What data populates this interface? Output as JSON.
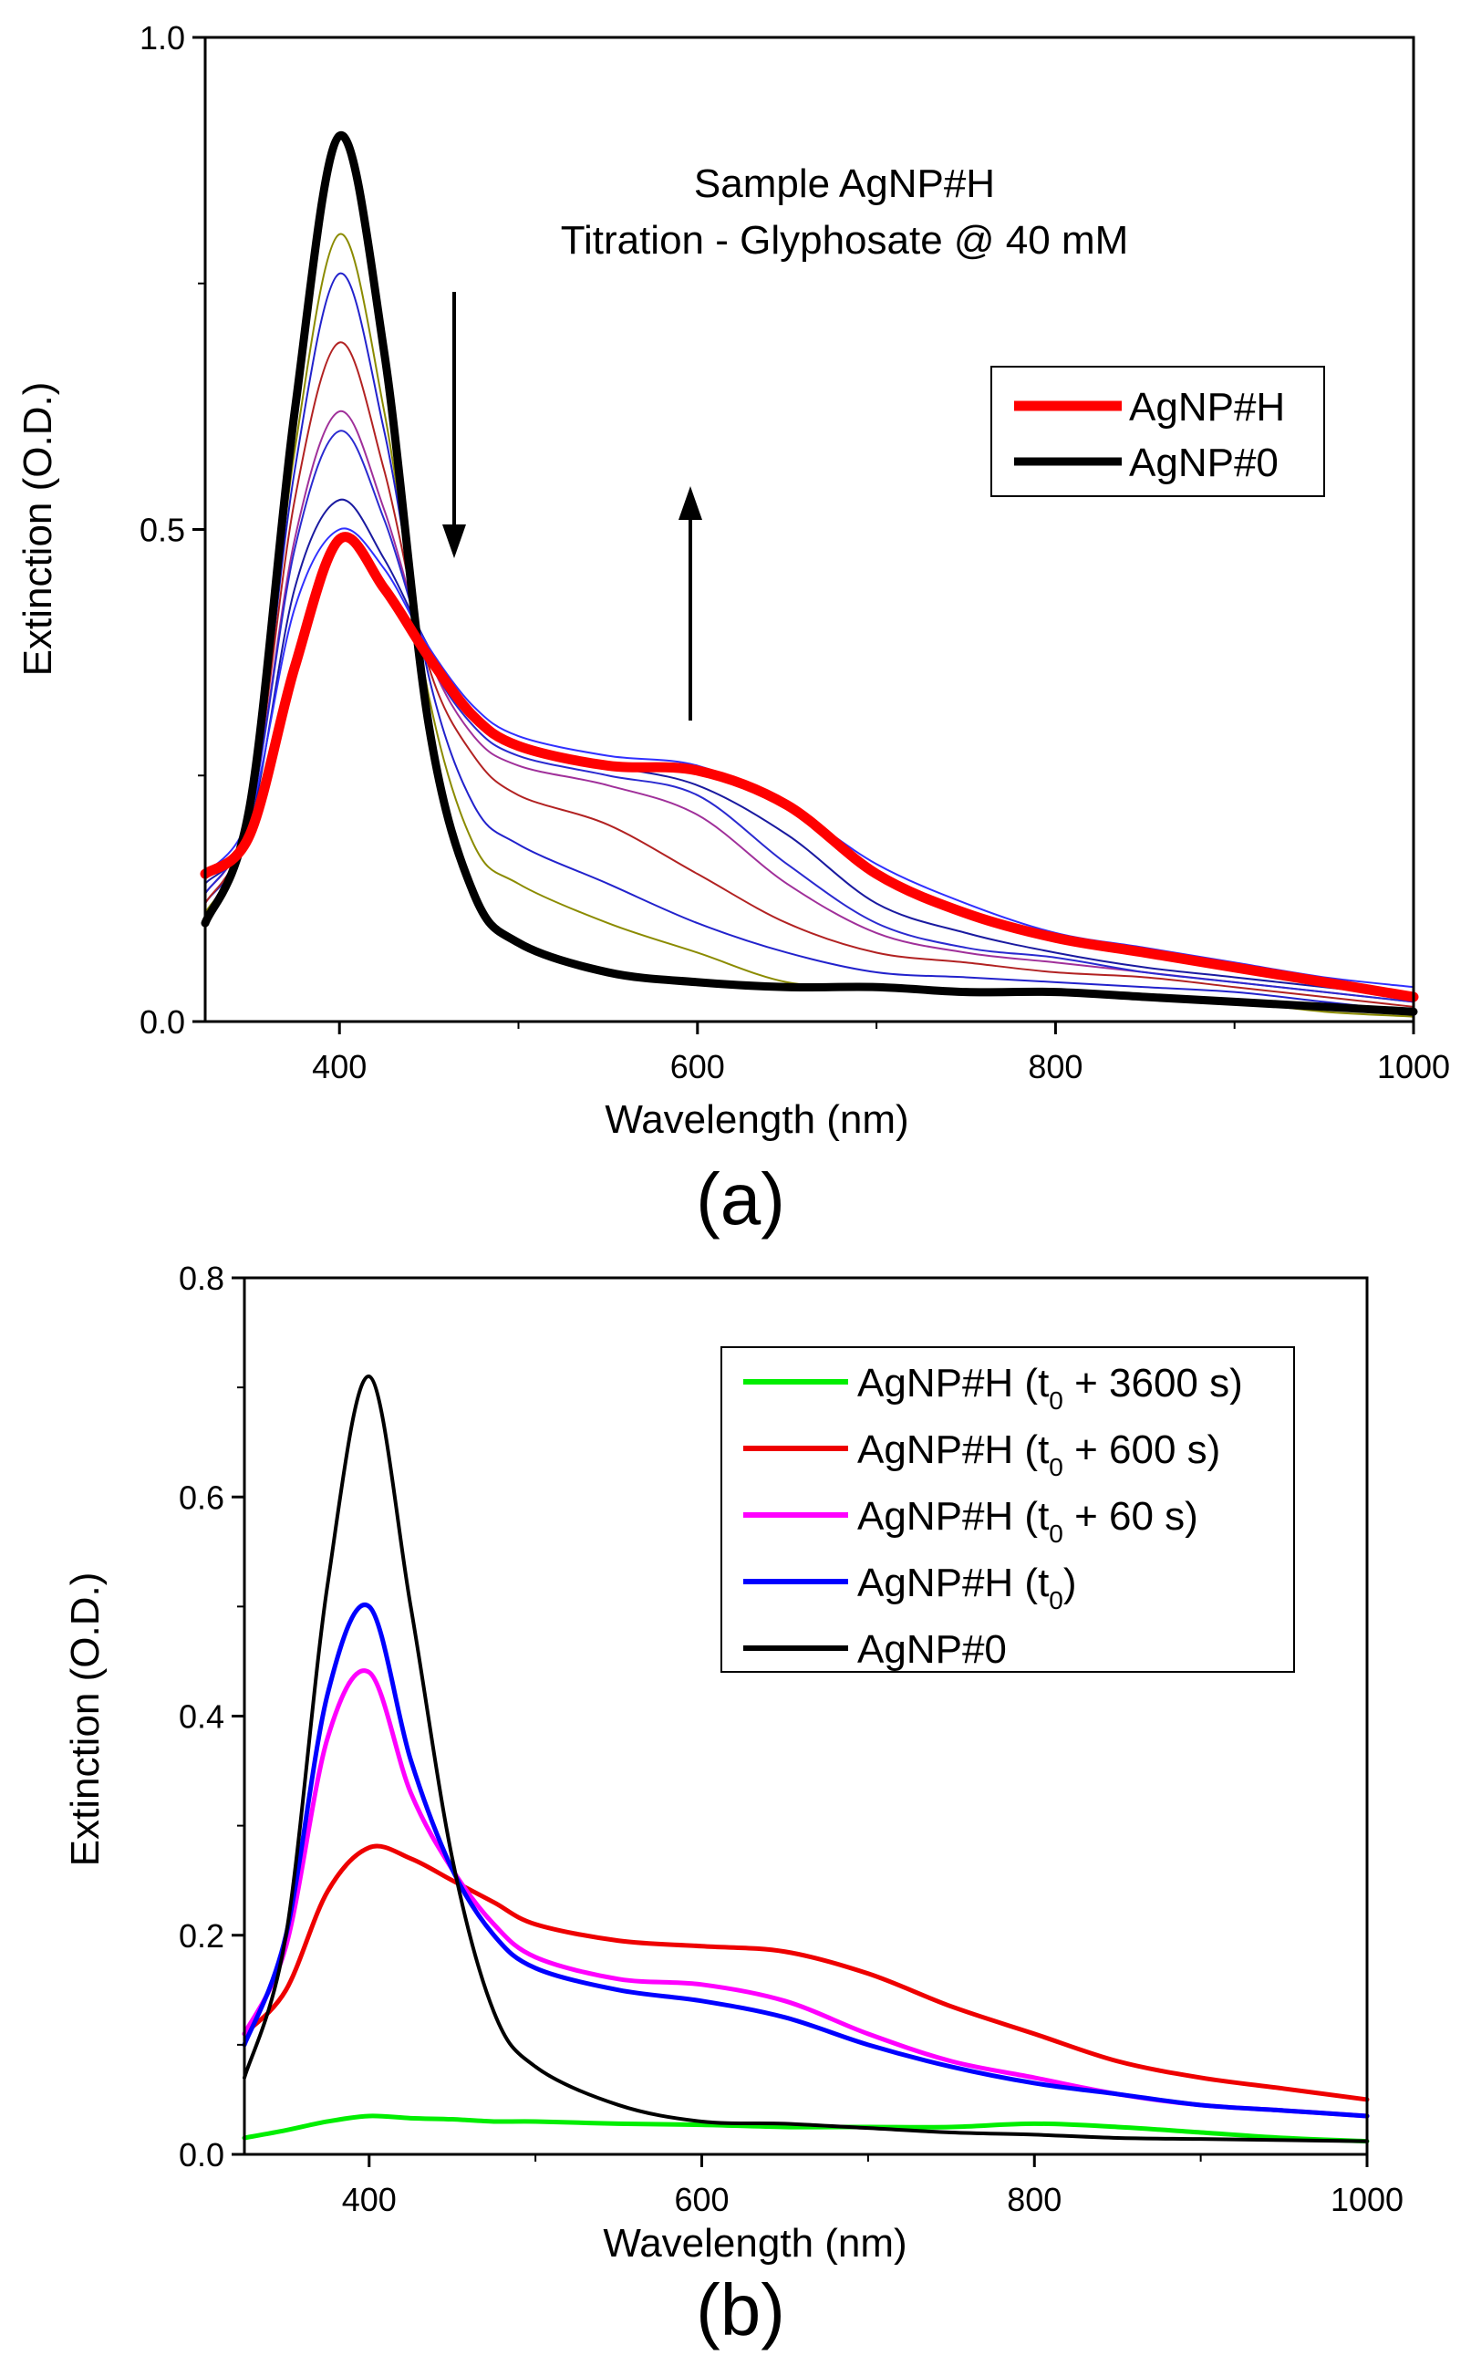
{
  "chart_data": [
    {
      "type": "line",
      "panel_label": "(a)",
      "annotation": [
        "Sample AgNP#H",
        "Titration - Glyphosate @ 40 mM"
      ],
      "xlabel": "Wavelength (nm)",
      "ylabel": "Extinction (O.D.)",
      "xlim": [
        325,
        1000
      ],
      "ylim": [
        0,
        1.0
      ],
      "xticks": [
        400,
        600,
        800,
        1000
      ],
      "xtick_labels": [
        "400",
        "600",
        "800",
        "1000"
      ],
      "yticks": [
        0,
        0.5,
        1.0
      ],
      "ytick_labels": [
        "0.0",
        "0.5",
        "1.0"
      ],
      "grid": false,
      "legend_placement": "top-right",
      "x": [
        325,
        350,
        375,
        400,
        425,
        450,
        475,
        500,
        550,
        600,
        650,
        700,
        750,
        800,
        850,
        900,
        950,
        1000
      ],
      "series": [
        {
          "name": "",
          "color": "#8b8b00",
          "width": 2,
          "legend": false,
          "values": [
            0.11,
            0.21,
            0.58,
            0.8,
            0.62,
            0.33,
            0.18,
            0.14,
            0.1,
            0.07,
            0.04,
            0.035,
            0.03,
            0.03,
            0.025,
            0.02,
            0.01,
            0.005
          ]
        },
        {
          "name": "",
          "color": "#2222cc",
          "width": 2,
          "legend": false,
          "values": [
            0.12,
            0.21,
            0.56,
            0.76,
            0.6,
            0.35,
            0.22,
            0.18,
            0.14,
            0.1,
            0.07,
            0.05,
            0.045,
            0.04,
            0.035,
            0.03,
            0.02,
            0.01
          ]
        },
        {
          "name": "",
          "color": "#b22222",
          "width": 2,
          "legend": false,
          "values": [
            0.12,
            0.21,
            0.53,
            0.69,
            0.56,
            0.36,
            0.27,
            0.23,
            0.2,
            0.15,
            0.1,
            0.07,
            0.06,
            0.05,
            0.045,
            0.035,
            0.025,
            0.015
          ]
        },
        {
          "name": "",
          "color": "#a0309a",
          "width": 2,
          "legend": false,
          "values": [
            0.13,
            0.21,
            0.49,
            0.62,
            0.52,
            0.37,
            0.29,
            0.26,
            0.24,
            0.21,
            0.14,
            0.09,
            0.07,
            0.06,
            0.05,
            0.04,
            0.03,
            0.02
          ]
        },
        {
          "name": "",
          "color": "#2a2ad0",
          "width": 2,
          "legend": false,
          "values": [
            0.13,
            0.21,
            0.48,
            0.6,
            0.51,
            0.37,
            0.3,
            0.27,
            0.25,
            0.23,
            0.16,
            0.1,
            0.075,
            0.065,
            0.05,
            0.04,
            0.03,
            0.02
          ]
        },
        {
          "name": "",
          "color": "#1a1aa0",
          "width": 2,
          "legend": false,
          "values": [
            0.14,
            0.2,
            0.44,
            0.53,
            0.47,
            0.38,
            0.31,
            0.28,
            0.26,
            0.24,
            0.19,
            0.12,
            0.09,
            0.07,
            0.055,
            0.045,
            0.035,
            0.025
          ]
        },
        {
          "name": "",
          "color": "#3030ff",
          "width": 2,
          "legend": false,
          "values": [
            0.15,
            0.21,
            0.42,
            0.5,
            0.46,
            0.38,
            0.32,
            0.29,
            0.27,
            0.26,
            0.22,
            0.16,
            0.12,
            0.09,
            0.075,
            0.06,
            0.045,
            0.035
          ]
        },
        {
          "name": "AgNP#0",
          "color": "#000000",
          "width": 9,
          "legend": true,
          "values": [
            0.1,
            0.22,
            0.62,
            0.9,
            0.68,
            0.3,
            0.13,
            0.08,
            0.05,
            0.04,
            0.035,
            0.035,
            0.03,
            0.03,
            0.025,
            0.02,
            0.015,
            0.01
          ]
        },
        {
          "name": "AgNP#H",
          "color": "#ff0000",
          "width": 11,
          "legend": true,
          "values": [
            0.15,
            0.19,
            0.36,
            0.49,
            0.44,
            0.37,
            0.31,
            0.28,
            0.26,
            0.255,
            0.22,
            0.15,
            0.11,
            0.085,
            0.07,
            0.055,
            0.04,
            0.025
          ]
        }
      ],
      "legend_order": [
        "AgNP#H",
        "AgNP#0"
      ]
    },
    {
      "type": "line",
      "panel_label": "(b)",
      "xlabel": "Wavelength (nm)",
      "ylabel": "Extinction (O.D.)",
      "xlim": [
        325,
        1000
      ],
      "ylim": [
        0,
        0.8
      ],
      "xticks": [
        400,
        600,
        800,
        1000
      ],
      "xtick_labels": [
        "400",
        "600",
        "800",
        "1000"
      ],
      "yticks": [
        0,
        0.2,
        0.4,
        0.6,
        0.8
      ],
      "ytick_labels": [
        "0.0",
        "0.2",
        "0.4",
        "0.6",
        "0.8"
      ],
      "grid": false,
      "legend_placement": "top-right",
      "x": [
        325,
        350,
        375,
        400,
        425,
        450,
        475,
        500,
        550,
        600,
        650,
        700,
        750,
        800,
        850,
        900,
        950,
        1000
      ],
      "series": [
        {
          "name": "AgNP#H (t0 + 3600 s)",
          "label_main": "AgNP#H (t",
          "label_sub": "0",
          "label_tail": " + 3600 s)",
          "color": "#00ee00",
          "width": 5,
          "values": [
            0.015,
            0.022,
            0.03,
            0.035,
            0.033,
            0.032,
            0.03,
            0.03,
            0.028,
            0.027,
            0.025,
            0.025,
            0.025,
            0.028,
            0.025,
            0.02,
            0.015,
            0.012
          ]
        },
        {
          "name": "AgNP#H (t0 + 600 s)",
          "label_main": "AgNP#H (t",
          "label_sub": "0",
          "label_tail": " + 600 s)",
          "color": "#ee0000",
          "width": 5,
          "values": [
            0.11,
            0.15,
            0.24,
            0.28,
            0.27,
            0.25,
            0.23,
            0.21,
            0.195,
            0.19,
            0.185,
            0.165,
            0.135,
            0.11,
            0.085,
            0.07,
            0.06,
            0.05
          ]
        },
        {
          "name": "AgNP#H (t0 + 60 s)",
          "label_main": "AgNP#H (t",
          "label_sub": "0",
          "label_tail": " + 60 s)",
          "color": "#ff00ff",
          "width": 5,
          "values": [
            0.11,
            0.19,
            0.38,
            0.44,
            0.33,
            0.26,
            0.21,
            0.18,
            0.16,
            0.155,
            0.14,
            0.11,
            0.085,
            0.07,
            0.055,
            0.045,
            0.04,
            0.035
          ]
        },
        {
          "name": "AgNP#H (t0)",
          "label_main": "AgNP#H (t",
          "label_sub": "0",
          "label_tail": ")",
          "color": "#0000ff",
          "width": 5,
          "values": [
            0.1,
            0.2,
            0.42,
            0.5,
            0.36,
            0.26,
            0.2,
            0.17,
            0.15,
            0.14,
            0.125,
            0.1,
            0.08,
            0.065,
            0.055,
            0.045,
            0.04,
            0.035
          ]
        },
        {
          "name": "AgNP#0",
          "label_main": "AgNP#0",
          "label_sub": "",
          "label_tail": "",
          "color": "#000000",
          "width": 4,
          "values": [
            0.07,
            0.2,
            0.52,
            0.71,
            0.5,
            0.27,
            0.13,
            0.08,
            0.045,
            0.03,
            0.028,
            0.024,
            0.02,
            0.018,
            0.015,
            0.014,
            0.013,
            0.012
          ]
        }
      ]
    }
  ]
}
